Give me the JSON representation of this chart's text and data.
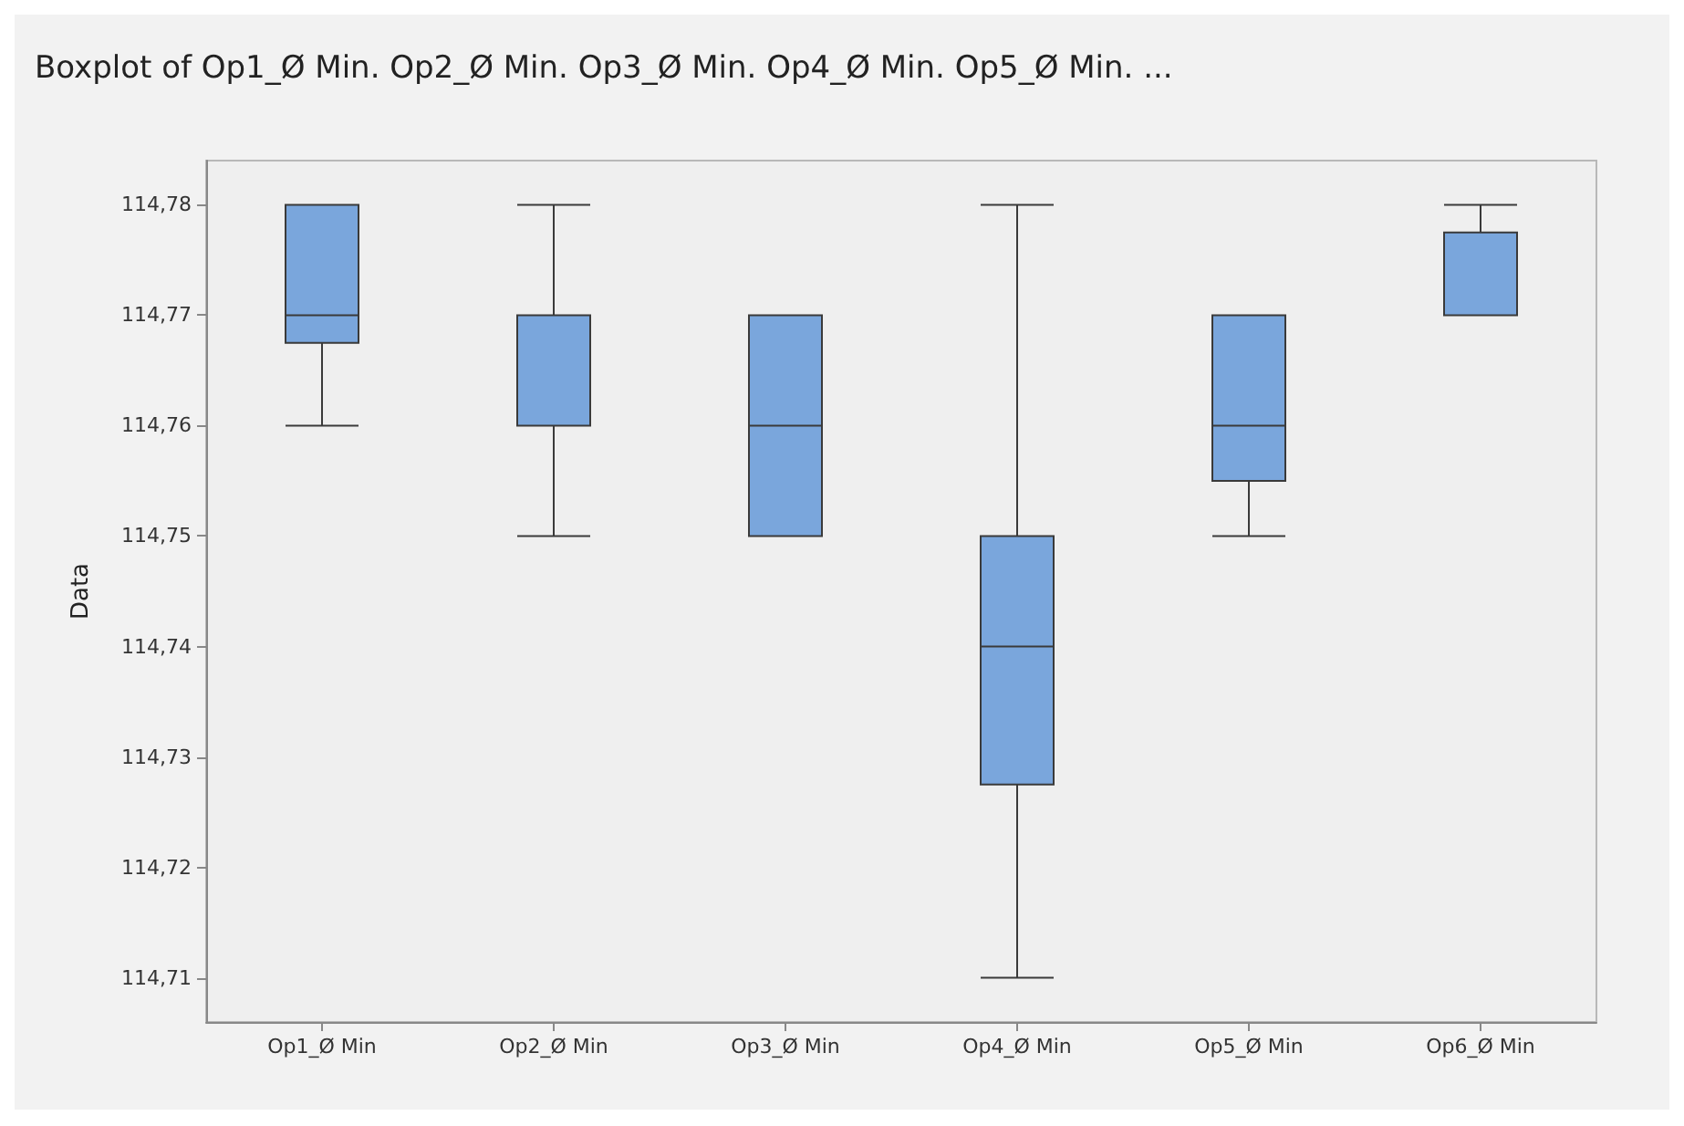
{
  "chart_data": {
    "type": "box",
    "title": "Boxplot of Op1_Ø Min. Op2_Ø Min. Op3_Ø Min. Op4_Ø Min. Op5_Ø Min. ...",
    "ylabel": "Data",
    "categories": [
      "Op1_Ø Min",
      "Op2_Ø Min",
      "Op3_Ø Min",
      "Op4_Ø Min",
      "Op5_Ø Min",
      "Op6_Ø Min"
    ],
    "color": "#7aa6dc",
    "boxes": [
      {
        "low": 114.76,
        "q1": 114.7675,
        "median": 114.77,
        "q3": 114.78,
        "high": 114.78
      },
      {
        "low": 114.75,
        "q1": 114.76,
        "median": 114.76,
        "q3": 114.77,
        "high": 114.78
      },
      {
        "low": 114.75,
        "q1": 114.75,
        "median": 114.76,
        "q3": 114.77,
        "high": 114.77
      },
      {
        "low": 114.71,
        "q1": 114.7275,
        "median": 114.74,
        "q3": 114.75,
        "high": 114.78
      },
      {
        "low": 114.75,
        "q1": 114.755,
        "median": 114.76,
        "q3": 114.77,
        "high": 114.77
      },
      {
        "low": 114.77,
        "q1": 114.77,
        "median": 114.77,
        "q3": 114.7775,
        "high": 114.78
      }
    ],
    "ylim": [
      114.706,
      114.784
    ],
    "yticks": [
      {
        "value": 114.71,
        "label": "114,71"
      },
      {
        "value": 114.72,
        "label": "114,72"
      },
      {
        "value": 114.73,
        "label": "114,73"
      },
      {
        "value": 114.74,
        "label": "114,74"
      },
      {
        "value": 114.75,
        "label": "114,75"
      },
      {
        "value": 114.76,
        "label": "114,76"
      },
      {
        "value": 114.77,
        "label": "114,77"
      },
      {
        "value": 114.78,
        "label": "114,78"
      }
    ],
    "grid": false
  }
}
